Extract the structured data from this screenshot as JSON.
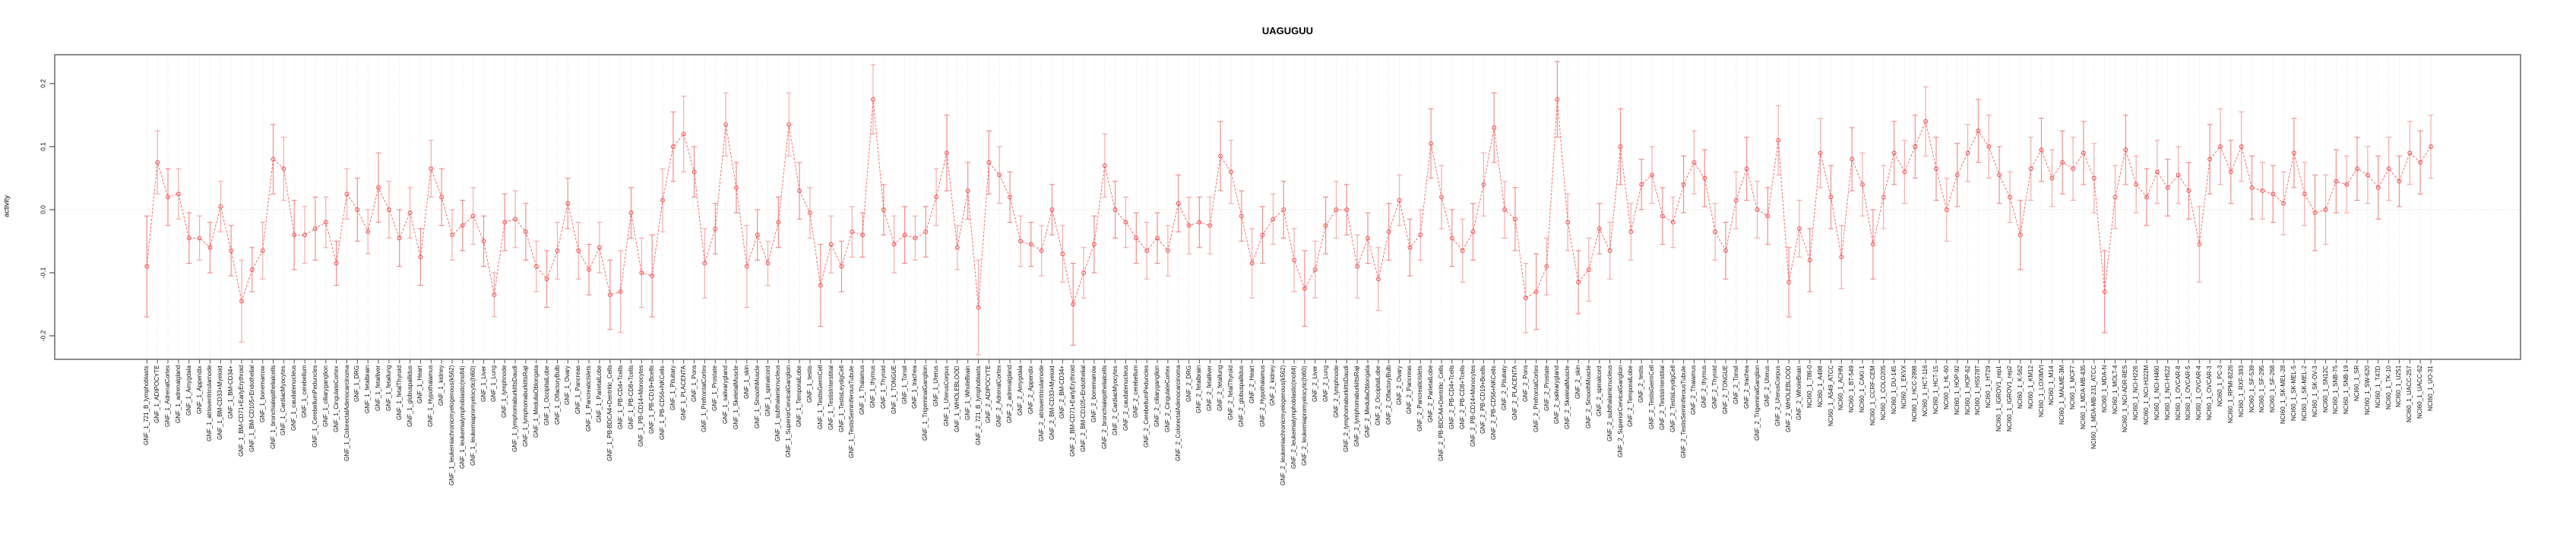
{
  "figure": {
    "title": "UAGUGUU",
    "background": "#ffffff"
  },
  "chart_data": {
    "type": "scatter",
    "subtype": "points-with-error-bars-connected-by-dashed-line",
    "title": "UAGUGUU",
    "xlabel": "",
    "ylabel": "activity",
    "ylim": [
      -0.237,
      0.246
    ],
    "yticks": [
      0.2,
      0.1,
      0.0,
      -0.1,
      -0.2
    ],
    "ytick_labels": [
      "0.2",
      "0.1",
      "0.0",
      "-0.1",
      "-0.2"
    ],
    "grid": "vertical dotted gridline at every category; dotted horizontal line at y=0",
    "legend": "none",
    "point_color": "#f25555",
    "errorbar_color": "#f79d9d",
    "line_color": "#f46b6b",
    "box_color": "#808080",
    "categories": [
      "GNF_1_721_B_lymphoblasts",
      "GNF_1_ADIPOCYTE",
      "GNF_1_AdrenalCortex",
      "GNF_1_adrenalgland",
      "GNF_1_Amygdala",
      "GNF_1_Appendix",
      "GNF_1_atrioventricularnode",
      "GNF_1_BM-CD33+Myeloid",
      "GNF_1_BM-CD34+",
      "GNF_1_BM-CD71+EarlyErythroid",
      "GNF_1_BM-CD105+Endothelial",
      "GNF_1_bonemarrow",
      "GNF_1_bronchialepithelialcells",
      "GNF_1_CardiacMyocytes",
      "GNF_1_caudatenucleus",
      "GNF_1_cerebellum",
      "GNF_1_CerebellumPeduncles",
      "GNF_1_ciliaryganglion",
      "GNF_1_CingulateCortex",
      "GNF_1_ColorectalAdenocarcinoma",
      "GNF_1_DRG",
      "GNF_1_fetalbrain",
      "GNF_1_fetalliver",
      "GNF_1_fetallung",
      "GNF_1_fetalThyroid",
      "GNF_1_globuspallidus",
      "GNF_1_Heart",
      "GNF_1_Hypothalamus",
      "GNF_1_kidney",
      "GNF_1_leukemiachronicmyelogenous(k562)",
      "GNF_1_leukemialymphoblastic(molt4)",
      "GNF_1_leukemiapromyelocytic(hl60)",
      "GNF_1_Liver",
      "GNF_1_Lung",
      "GNF_1_lymphnode",
      "GNF_1_lymphomaburkittsDaudi",
      "GNF_1_lymphomaburkittsRaji",
      "GNF_1_MedullaOblongata",
      "GNF_1_OccipitalLobe",
      "GNF_1_OlfactoryBulb",
      "GNF_1_Ovary",
      "GNF_1_Pancreas",
      "GNF_1_PancreaticIslets",
      "GNF_1_ParietalLobe",
      "GNF_1_PB-BDCA4+Dentritic_Cells",
      "GNF_1_PB-CD4+Tcells",
      "GNF_1_PB-CD8+Tcells",
      "GNF_1_PB-CD14+Monocytes",
      "GNF_1_PB-CD19+Bcells",
      "GNF_1_PB-CD56+NKCells",
      "GNF_1_Pituitary",
      "GNF_1_PLACENTA",
      "GNF_1_Pons",
      "GNF_1_PrefrontalCortex",
      "GNF_1_Prostate",
      "GNF_1_salivarygland",
      "GNF_1_SkeletalMuscle",
      "GNF_1_skin",
      "GNF_1_SmoothMuscle",
      "GNF_1_spinalcord",
      "GNF_1_subthalamicnucleus",
      "GNF_1_SuperiorCervicalGanglion",
      "GNF_1_TemporalLobe",
      "GNF_1_testis",
      "GNF_1_TestisGermCell",
      "GNF_1_TestisInterstitial",
      "GNF_1_TestisLeydigCell",
      "GNF_1_TestisSeminiferousTubule",
      "GNF_1_Thalamus",
      "GNF_1_thymus",
      "GNF_1_Thyroid",
      "GNF_1_TONGUE",
      "GNF_1_Tonsil",
      "GNF_1_trachea",
      "GNF_1_TrigeminalGanglion",
      "GNF_1_Uterus",
      "GNF_1_UterusCorpus",
      "GNF_1_WHOLEBLOOD",
      "GNF_1_WholeBrain",
      "GNF_2_721_B_lymphoblasts",
      "GNF_2_ADIPOCYTE",
      "GNF_2_AdrenalCortex",
      "GNF_2_adrenalgland",
      "GNF_2_Amygdala",
      "GNF_2_Appendix",
      "GNF_2_atrioventricularnode",
      "GNF_2_BM-CD33+Myeloid",
      "GNF_2_BM-CD34+",
      "GNF_2_BM-CD71+EarlyErythroid",
      "GNF_2_BM-CD105+Endothelial",
      "GNF_2_bonemarrow",
      "GNF_2_bronchialepithelialcells",
      "GNF_2_CardiacMyocytes",
      "GNF_2_caudatenucleus",
      "GNF_2_cerebellum",
      "GNF_2_CerebellumPeduncles",
      "GNF_2_ciliaryganglion",
      "GNF_2_CingulateCortex",
      "GNF_2_ColorectalAdenocarcinoma",
      "GNF_2_DRG",
      "GNF_2_fetalbrain",
      "GNF_2_fetalliver",
      "GNF_2_fetallung",
      "GNF_2_fetalThyroid",
      "GNF_2_globuspallidus",
      "GNF_2_Heart",
      "GNF_2_Hypothalamus",
      "GNF_2_kidney",
      "GNF_2_leukemiachronicmyelogenous(k562)",
      "GNF_2_leukemialymphoblastic(molt4)",
      "GNF_2_leukemiapromyelocytic(hl60)",
      "GNF_2_Liver",
      "GNF_2_Lung",
      "GNF_2_lymphnode",
      "GNF_2_lymphomaburkittsDaudi",
      "GNF_2_lymphomaburkittsRaji",
      "GNF_2_MedullaOblongata",
      "GNF_2_OccipitalLobe",
      "GNF_2_OlfactoryBulb",
      "GNF_2_Ovary",
      "GNF_2_Pancreas",
      "GNF_2_PancreaticIslets",
      "GNF_2_ParietalLobe",
      "GNF_2_PB-BDCA4+Dentritic_Cells",
      "GNF_2_PB-CD4+Tcells",
      "GNF_2_PB-CD8+Tcells",
      "GNF_2_PB-CD14+Monocytes",
      "GNF_2_PB-CD19+Bcells",
      "GNF_2_PB-CD56+NKCells",
      "GNF_2_Pituitary",
      "GNF_2_PLACENTA",
      "GNF_2_Pons",
      "GNF_2_PrefrontalCortex",
      "GNF_2_Prostate",
      "GNF_2_salivarygland",
      "GNF_2_SkeletalMuscle",
      "GNF_2_skin",
      "GNF_2_SmoothMuscle",
      "GNF_2_spinalcord",
      "GNF_2_subthalamicnucleus",
      "GNF_2_SuperiorCervicalGanglion",
      "GNF_2_TemporalLobe",
      "GNF_2_testis",
      "GNF_2_TestisGermCell",
      "GNF_2_TestisInterstitial",
      "GNF_2_TestisLeydigCell",
      "GNF_2_TestisSeminiferousTubule",
      "GNF_2_Thalamus",
      "GNF_2_thymus",
      "GNF_2_Thyroid",
      "GNF_2_TONGUE",
      "GNF_2_Tonsil",
      "GNF_2_trachea",
      "GNF_2_TrigeminalGanglion",
      "GNF_2_Uterus",
      "GNF_2_UterusCorpus",
      "GNF_2_WHOLEBLOOD",
      "GNF_2_WholeBrain",
      "NCI60_1_786-0",
      "NCI60_1_A498",
      "NCI60_1_A549_ATCC",
      "NCI60_1_ACHN",
      "NCI60_1_BT-549",
      "NCI60_1_CAKI-1",
      "NCI60_1_CCRF-CEM",
      "NCI60_1_COLO205",
      "NCI60_1_DU-145",
      "NCI60_1_EKVX",
      "NCI60_1_HCC-2998",
      "NCI60_1_HCT-116",
      "NCI60_1_HCT-15",
      "NCI60_1_HL-60",
      "NCI60_1_HOP-92",
      "NCI60_1_HOP-62",
      "NCI60_1_HS578T",
      "NCI60_1_HT29",
      "NCI60_1_IGROV1_rep1",
      "NCI60_1_IGROV1_rep2",
      "NCI60_1_K-562",
      "NCI60_1_KM12",
      "NCI60_1_LOXIMVI",
      "NCI60_1_M14",
      "NCI60_1_MALME-3M",
      "NCI60_1_MCF7",
      "NCI60_1_MDA-MB-435",
      "NCI60_1_MDA-MB-231_ATCC",
      "NCI60_1_MDA-N",
      "NCI60_1_MOLT-4",
      "NCI60_1_NCI-ADR-RES",
      "NCI60_1_NCI-H226",
      "NCI60_1_NCI-H322M",
      "NCI60_1_NCI-H460",
      "NCI60_1_NCI-H522",
      "NCI60_1_OVCAR-8",
      "NCI60_1_OVCAR-5",
      "NCI60_1_OVCAR-4",
      "NCI60_1_OVCAR-3",
      "NCI60_1_PC-3",
      "NCI60_1_RPMI-8226",
      "NCI60_1_RXF-393",
      "NCI60_1_SF-539",
      "NCI60_1_SF-295",
      "NCI60_1_SF-268",
      "NCI60_1_SK-MEL-28",
      "NCI60_1_SK-MEL-5",
      "NCI60_1_SK-MEL-2",
      "NCI60_1_SK-OV-3",
      "NCI60_1_SN12C",
      "NCI60_1_SNB-75",
      "NCI60_1_SNB-19",
      "NCI60_1_SR",
      "NCI60_1_SW-620",
      "NCI60_1_T47D",
      "NCI60_1_TK-10",
      "NCI60_1_U251",
      "NCI60_1_UACC-257",
      "NCI60_1_UACC-62",
      "NCI60_1_UO-31"
    ],
    "values": [
      -0.09,
      0.075,
      0.02,
      0.025,
      -0.045,
      -0.045,
      -0.06,
      0.005,
      -0.065,
      -0.145,
      -0.095,
      -0.065,
      0.08,
      0.065,
      -0.04,
      -0.04,
      -0.03,
      -0.02,
      -0.085,
      0.025,
      0.0,
      -0.035,
      0.035,
      0.0,
      -0.045,
      -0.005,
      -0.075,
      0.065,
      0.02,
      -0.04,
      -0.025,
      -0.01,
      -0.05,
      -0.135,
      -0.02,
      -0.015,
      -0.035,
      -0.09,
      -0.11,
      -0.065,
      0.01,
      -0.065,
      -0.095,
      -0.06,
      -0.135,
      -0.13,
      -0.005,
      -0.1,
      -0.105,
      0.015,
      0.1,
      0.12,
      0.06,
      -0.085,
      -0.03,
      0.135,
      0.035,
      -0.09,
      -0.04,
      -0.085,
      -0.02,
      0.135,
      0.03,
      -0.005,
      -0.12,
      -0.055,
      -0.09,
      -0.035,
      -0.04,
      0.175,
      0.0,
      -0.055,
      -0.04,
      -0.045,
      -0.035,
      0.02,
      0.09,
      -0.06,
      0.03,
      -0.155,
      0.075,
      0.055,
      0.02,
      -0.05,
      -0.055,
      -0.065,
      0.0,
      -0.07,
      -0.15,
      -0.1,
      -0.055,
      0.07,
      0.0,
      -0.02,
      -0.045,
      -0.065,
      -0.045,
      -0.065,
      0.01,
      -0.025,
      -0.02,
      -0.025,
      0.085,
      0.06,
      -0.01,
      -0.085,
      -0.04,
      -0.015,
      0.0,
      -0.08,
      -0.125,
      -0.095,
      -0.025,
      0.0,
      0.0,
      -0.09,
      -0.045,
      -0.11,
      -0.035,
      0.015,
      -0.06,
      -0.04,
      0.105,
      0.02,
      -0.045,
      -0.065,
      -0.035,
      0.04,
      0.13,
      0.0,
      -0.015,
      -0.14,
      -0.13,
      -0.09,
      0.175,
      -0.02,
      -0.115,
      -0.095,
      -0.03,
      -0.065,
      0.1,
      -0.035,
      0.04,
      0.055,
      -0.01,
      -0.02,
      0.04,
      0.075,
      0.05,
      -0.035,
      -0.065,
      0.015,
      0.065,
      0.0,
      -0.01,
      0.11,
      -0.115,
      -0.03,
      -0.08,
      0.09,
      0.02,
      -0.075,
      0.08,
      0.04,
      -0.055,
      0.02,
      0.09,
      0.06,
      0.1,
      0.14,
      0.065,
      0.0,
      0.055,
      0.09,
      0.125,
      0.1,
      0.055,
      0.02,
      -0.04,
      0.065,
      0.095,
      0.05,
      0.075,
      0.065,
      0.09,
      0.05,
      -0.13,
      0.02,
      0.095,
      0.04,
      0.02,
      0.06,
      0.035,
      0.055,
      0.03,
      -0.055,
      0.08,
      0.1,
      0.06,
      0.1,
      0.035,
      0.03,
      0.025,
      0.01,
      0.09,
      0.025,
      -0.005,
      0.0,
      0.045,
      0.04,
      0.065,
      0.055,
      0.035,
      0.065,
      0.045,
      0.09,
      0.075,
      0.1
    ],
    "errors": [
      0.08,
      0.05,
      0.045,
      0.04,
      0.04,
      0.035,
      0.04,
      0.04,
      0.04,
      0.065,
      0.035,
      0.045,
      0.055,
      0.05,
      0.055,
      0.045,
      0.05,
      0.04,
      0.035,
      0.04,
      0.05,
      0.035,
      0.055,
      0.045,
      0.045,
      0.04,
      0.045,
      0.045,
      0.045,
      0.04,
      0.04,
      0.045,
      0.04,
      0.035,
      0.045,
      0.045,
      0.045,
      0.04,
      0.045,
      0.045,
      0.04,
      0.045,
      0.04,
      0.04,
      0.055,
      0.065,
      0.04,
      0.055,
      0.065,
      0.05,
      0.055,
      0.06,
      0.04,
      0.055,
      0.04,
      0.05,
      0.04,
      0.065,
      0.04,
      0.035,
      0.04,
      0.05,
      0.045,
      0.04,
      0.065,
      0.045,
      0.04,
      0.04,
      0.035,
      0.055,
      0.04,
      0.045,
      0.045,
      0.035,
      0.04,
      0.045,
      0.06,
      0.035,
      0.045,
      0.075,
      0.05,
      0.045,
      0.04,
      0.04,
      0.035,
      0.04,
      0.04,
      0.045,
      0.065,
      0.04,
      0.045,
      0.05,
      0.045,
      0.04,
      0.04,
      0.045,
      0.04,
      0.04,
      0.045,
      0.045,
      0.04,
      0.045,
      0.055,
      0.05,
      0.04,
      0.055,
      0.045,
      0.04,
      0.045,
      0.05,
      0.06,
      0.045,
      0.045,
      0.045,
      0.04,
      0.05,
      0.04,
      0.05,
      0.045,
      0.04,
      0.045,
      0.04,
      0.055,
      0.05,
      0.045,
      0.05,
      0.045,
      0.05,
      0.055,
      0.045,
      0.05,
      0.055,
      0.06,
      0.045,
      0.06,
      0.045,
      0.05,
      0.05,
      0.04,
      0.045,
      0.06,
      0.045,
      0.04,
      0.045,
      0.045,
      0.04,
      0.045,
      0.05,
      0.045,
      0.045,
      0.045,
      0.045,
      0.05,
      0.045,
      0.045,
      0.055,
      0.055,
      0.045,
      0.05,
      0.055,
      0.05,
      0.05,
      0.05,
      0.05,
      0.055,
      0.05,
      0.05,
      0.05,
      0.05,
      0.055,
      0.05,
      0.05,
      0.05,
      0.045,
      0.05,
      0.05,
      0.045,
      0.04,
      0.055,
      0.05,
      0.05,
      0.045,
      0.05,
      0.05,
      0.05,
      0.055,
      0.065,
      0.05,
      0.055,
      0.045,
      0.045,
      0.05,
      0.045,
      0.045,
      0.045,
      0.06,
      0.055,
      0.06,
      0.05,
      0.055,
      0.05,
      0.045,
      0.045,
      0.05,
      0.055,
      0.05,
      0.06,
      0.055,
      0.05,
      0.045,
      0.05,
      0.045,
      0.05,
      0.05,
      0.04,
      0.05,
      0.05,
      0.05
    ]
  }
}
